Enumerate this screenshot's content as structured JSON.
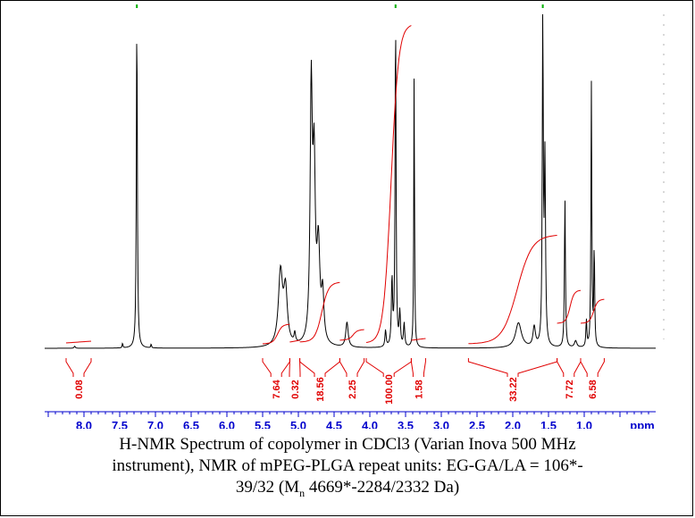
{
  "chart_data": {
    "type": "line",
    "title": "",
    "xlabel": "ppm",
    "xlim": [
      8.55,
      0.0
    ],
    "x_reversed": true,
    "x_ticks": [
      "8.0",
      "7.5",
      "7.0",
      "6.5",
      "6.0",
      "5.5",
      "5.0",
      "4.5",
      "4.0",
      "3.5",
      "3.0",
      "2.5",
      "2.0",
      "1.5",
      "1.0"
    ],
    "x_tick_values": [
      8.0,
      7.5,
      7.0,
      6.5,
      6.0,
      5.5,
      5.0,
      4.5,
      4.0,
      3.5,
      3.0,
      2.5,
      2.0,
      1.5,
      1.0
    ],
    "ylim": [
      0,
      1.0
    ],
    "grid": false,
    "legend": "none",
    "series": [
      {
        "color": "#000000",
        "peaks": [
          {
            "ppm": 8.13,
            "height": 0.006,
            "width": 0.01
          },
          {
            "ppm": 7.46,
            "height": 0.015,
            "width": 0.006
          },
          {
            "ppm": 7.26,
            "height": 1.0,
            "width": 0.008
          },
          {
            "ppm": 7.06,
            "height": 0.012,
            "width": 0.006
          },
          {
            "ppm": 5.25,
            "height": 0.22,
            "width": 0.035
          },
          {
            "ppm": 5.18,
            "height": 0.16,
            "width": 0.03
          },
          {
            "ppm": 5.05,
            "height": 0.03,
            "width": 0.012
          },
          {
            "ppm": 4.82,
            "height": 0.74,
            "width": 0.018
          },
          {
            "ppm": 4.78,
            "height": 0.5,
            "width": 0.02
          },
          {
            "ppm": 4.72,
            "height": 0.28,
            "width": 0.025
          },
          {
            "ppm": 4.66,
            "height": 0.14,
            "width": 0.02
          },
          {
            "ppm": 4.32,
            "height": 0.075,
            "width": 0.02
          },
          {
            "ppm": 3.78,
            "height": 0.05,
            "width": 0.01
          },
          {
            "ppm": 3.69,
            "height": 0.2,
            "width": 0.01
          },
          {
            "ppm": 3.64,
            "height": 1.0,
            "width": 0.008
          },
          {
            "ppm": 3.58,
            "height": 0.1,
            "width": 0.01
          },
          {
            "ppm": 3.52,
            "height": 0.07,
            "width": 0.01
          },
          {
            "ppm": 3.38,
            "height": 0.84,
            "width": 0.006
          },
          {
            "ppm": 1.92,
            "height": 0.075,
            "width": 0.05
          },
          {
            "ppm": 1.7,
            "height": 0.06,
            "width": 0.02
          },
          {
            "ppm": 1.58,
            "height": 1.0,
            "width": 0.008
          },
          {
            "ppm": 1.55,
            "height": 0.55,
            "width": 0.01
          },
          {
            "ppm": 1.27,
            "height": 0.45,
            "width": 0.008
          },
          {
            "ppm": 1.12,
            "height": 0.02,
            "width": 0.02
          },
          {
            "ppm": 0.97,
            "height": 0.08,
            "width": 0.008
          },
          {
            "ppm": 0.9,
            "height": 0.79,
            "width": 0.007
          },
          {
            "ppm": 0.86,
            "height": 0.3,
            "width": 0.007
          }
        ]
      }
    ],
    "integrals": [
      {
        "label": "0.08",
        "from": 8.25,
        "to": 7.9
      },
      {
        "label": "7.64",
        "from": 5.5,
        "to": 5.12
      },
      {
        "label": "0.32",
        "from": 5.12,
        "to": 4.98
      },
      {
        "label": "18.56",
        "from": 4.98,
        "to": 4.42
      },
      {
        "label": "2.25",
        "from": 4.42,
        "to": 4.08
      },
      {
        "label": "100.00",
        "from": 4.05,
        "to": 3.42
      },
      {
        "label": "1.58",
        "from": 3.42,
        "to": 3.22
      },
      {
        "label": "33.22",
        "from": 2.62,
        "to": 1.38
      },
      {
        "label": "7.72",
        "from": 1.38,
        "to": 1.05
      },
      {
        "label": "6.58",
        "from": 1.05,
        "to": 0.72
      }
    ]
  },
  "caption": {
    "line1": "H-NMR Spectrum of copolymer in CDCl3 (Varian Inova 500 MHz",
    "line2": "instrument), NMR of mPEG-PLGA repeat units: EG-GA/LA = 106*-",
    "line3_pre": "39/32 (M",
    "line3_sub": "n",
    "line3_post": " 4669*-2284/2332 Da)"
  }
}
